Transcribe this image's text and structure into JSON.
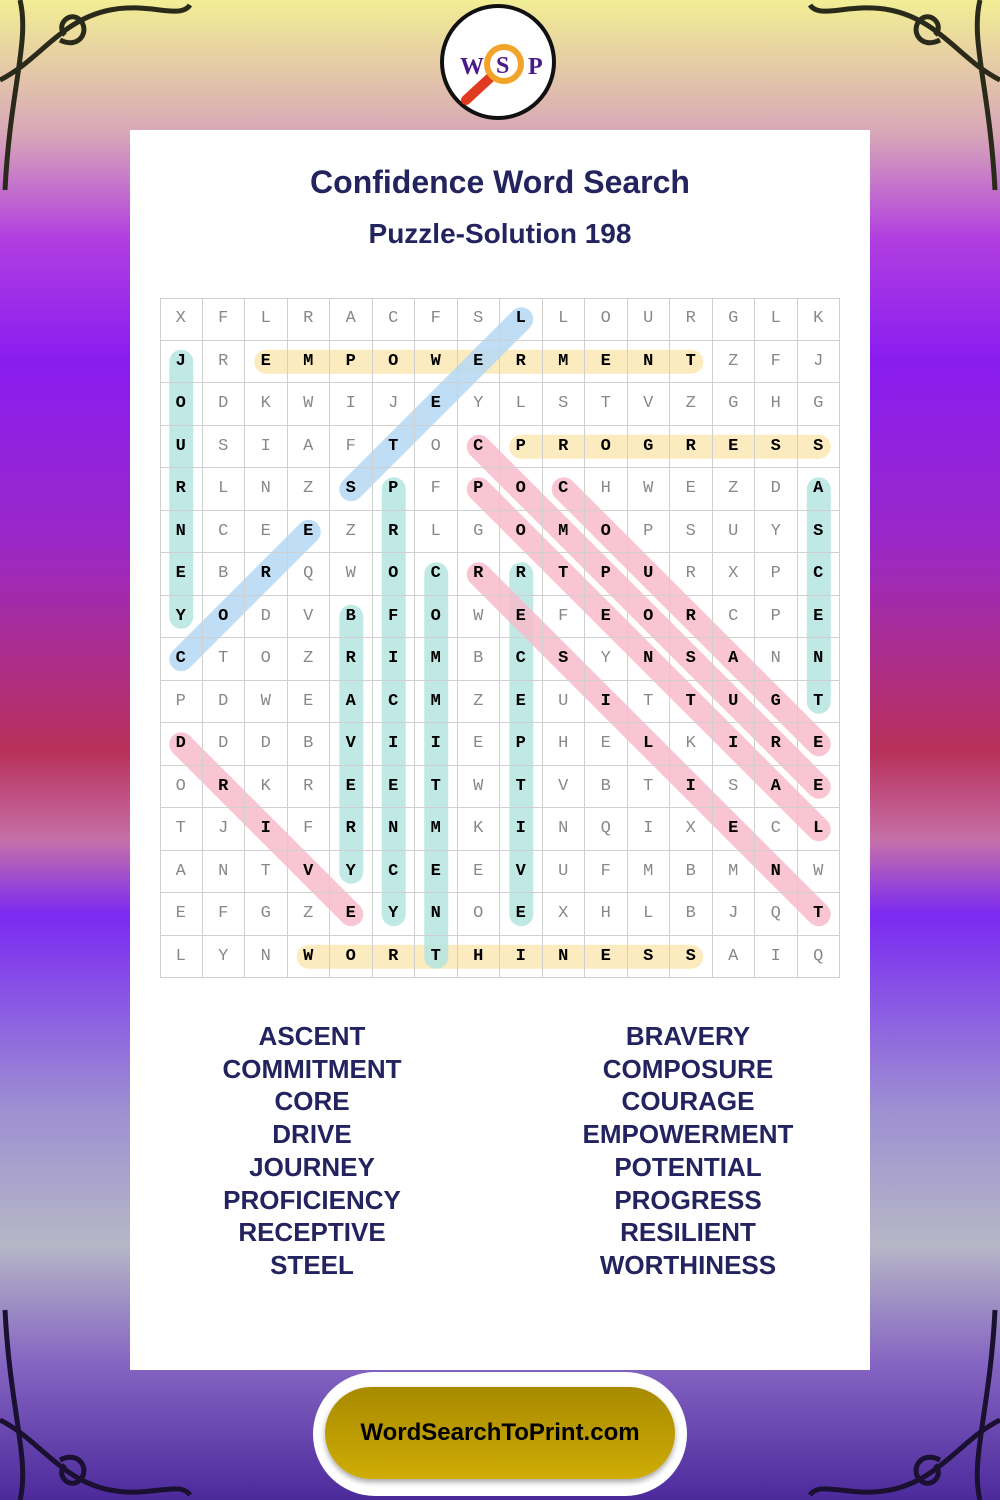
{
  "logo": {
    "letters": [
      "W",
      "S",
      "P"
    ],
    "icon": "magnifying-glass-icon"
  },
  "title": "Confidence Word Search",
  "subtitle": "Puzzle-Solution 198",
  "grid": [
    "XFLRACFSLLOURGLK",
    "JREMPOWERMENTZFJ",
    "ODKWIJEYLSTVZGHG",
    "USIAFTOCPROGRESS",
    "RLNZSPFPOCHWEZDA",
    "NCEEZRLGOMOPSUYS",
    "EBRQWOCRRTPURXPC",
    "YODVBFOWEFEORCPE",
    "CTOZRIMBCSYNSANN",
    "PDWEACMZEUITTUGT",
    "DDDBVIIEPHELKIRE",
    "ORKREETWTVBTISAE",
    "TJIFRNMKINQIXECL",
    "ANTVYCEEVUFMBMNW",
    "EFGZEYNOEXHLBJQT",
    "LYNWORTHINESSAIQ"
  ],
  "highlight_colors": {
    "horizontal": "#fbe8b4",
    "vertical": "#b6e6e2",
    "diagonal_up": "#b5d9f4",
    "diagonal_down": "#f8bccb"
  },
  "solutions": [
    {
      "word": "EMPOWERMENT",
      "start": [
        1,
        2
      ],
      "end": [
        1,
        12
      ],
      "dir": "horizontal"
    },
    {
      "word": "PROGRESS",
      "start": [
        3,
        8
      ],
      "end": [
        3,
        15
      ],
      "dir": "horizontal"
    },
    {
      "word": "WORTHINESS",
      "start": [
        15,
        3
      ],
      "end": [
        15,
        12
      ],
      "dir": "horizontal"
    },
    {
      "word": "JOURNEY",
      "start": [
        1,
        0
      ],
      "end": [
        7,
        0
      ],
      "dir": "vertical"
    },
    {
      "word": "PROFICIENCY",
      "start": [
        4,
        5
      ],
      "end": [
        14,
        5
      ],
      "dir": "vertical"
    },
    {
      "word": "BRAVERY",
      "start": [
        7,
        4
      ],
      "end": [
        13,
        4
      ],
      "dir": "vertical"
    },
    {
      "word": "COMMITMENT",
      "start": [
        6,
        6
      ],
      "end": [
        15,
        6
      ],
      "dir": "vertical"
    },
    {
      "word": "RECEPTIVE",
      "start": [
        6,
        8
      ],
      "end": [
        14,
        8
      ],
      "dir": "vertical"
    },
    {
      "word": "ASCENT",
      "start": [
        4,
        15
      ],
      "end": [
        9,
        15
      ],
      "dir": "vertical"
    },
    {
      "word": "STEEL",
      "start": [
        4,
        4
      ],
      "end": [
        0,
        8
      ],
      "dir": "diagonal_up"
    },
    {
      "word": "CORE",
      "start": [
        8,
        0
      ],
      "end": [
        5,
        3
      ],
      "dir": "diagonal_up"
    },
    {
      "word": "COMPOSURE",
      "start": [
        3,
        7
      ],
      "end": [
        11,
        15
      ],
      "dir": "diagonal_down"
    },
    {
      "word": "POTENTIAL",
      "start": [
        4,
        7
      ],
      "end": [
        12,
        15
      ],
      "dir": "diagonal_down"
    },
    {
      "word": "COURAGE",
      "start": [
        4,
        9
      ],
      "end": [
        10,
        15
      ],
      "dir": "diagonal_down"
    },
    {
      "word": "RESILIENT",
      "start": [
        6,
        7
      ],
      "end": [
        14,
        15
      ],
      "dir": "diagonal_down"
    },
    {
      "word": "DRIVE",
      "start": [
        10,
        0
      ],
      "end": [
        14,
        4
      ],
      "dir": "diagonal_down"
    }
  ],
  "word_list": {
    "left": [
      "ASCENT",
      "COMMITMENT",
      "CORE",
      "DRIVE",
      "JOURNEY",
      "PROFICIENCY",
      "RECEPTIVE",
      "STEEL"
    ],
    "right": [
      "BRAVERY",
      "COMPOSURE",
      "COURAGE",
      "EMPOWERMENT",
      "POTENTIAL",
      "PROGRESS",
      "RESILIENT",
      "WORTHINESS"
    ]
  },
  "footer": {
    "site": "WordSearchToPrint.com",
    "button_color": "#c2a104"
  }
}
